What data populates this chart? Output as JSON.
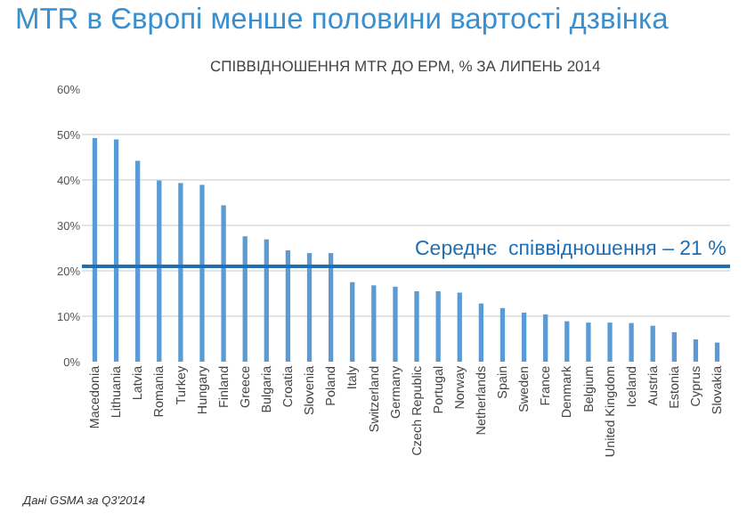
{
  "chart_data": {
    "type": "bar",
    "title": "MTR в Європі менше половини вартості дзвінка",
    "subtitle": "СПІВВІДНОШЕННЯ MTR ДО EPM, % ЗА ЛИПЕНЬ 2014",
    "categories": [
      "Macedonia",
      "Lithuania",
      "Latvia",
      "Romania",
      "Turkey",
      "Hungary",
      "Finland",
      "Greece",
      "Bulgaria",
      "Croatia",
      "Slovenia",
      "Poland",
      "Italy",
      "Switzerland",
      "Germany",
      "Czech Republic",
      "Portugal",
      "Norway",
      "Netherlands",
      "Spain",
      "Sweden",
      "France",
      "Denmark",
      "Belgium",
      "United Kingdom",
      "Iceland",
      "Austria",
      "Estonia",
      "Cyprus",
      "Slovakia"
    ],
    "values": [
      49.2,
      48.9,
      44.2,
      39.9,
      39.3,
      38.9,
      34.4,
      27.6,
      26.9,
      24.5,
      23.9,
      23.9,
      17.5,
      16.8,
      16.5,
      15.5,
      15.5,
      15.2,
      12.8,
      11.8,
      10.8,
      10.4,
      8.9,
      8.6,
      8.6,
      8.5,
      7.9,
      6.5,
      4.9,
      4.2
    ],
    "color": "#5b9bd5",
    "ylim": [
      0,
      60
    ],
    "yticks": [
      {
        "value": 0,
        "label": "0%"
      },
      {
        "value": 10,
        "label": "10%"
      },
      {
        "value": 20,
        "label": "20%"
      },
      {
        "value": 30,
        "label": "30%"
      },
      {
        "value": 40,
        "label": "40%"
      },
      {
        "value": 50,
        "label": "50%"
      },
      {
        "value": 60,
        "label": "60%"
      }
    ],
    "grid": "y",
    "legend": false,
    "ref_lines": [
      {
        "axis": "y",
        "value": 21,
        "label": "Середнє  співвідношення – 21 %",
        "color": "#1f6fb2"
      }
    ],
    "annotations": [
      "Дані GSMA за Q3'2014"
    ]
  }
}
